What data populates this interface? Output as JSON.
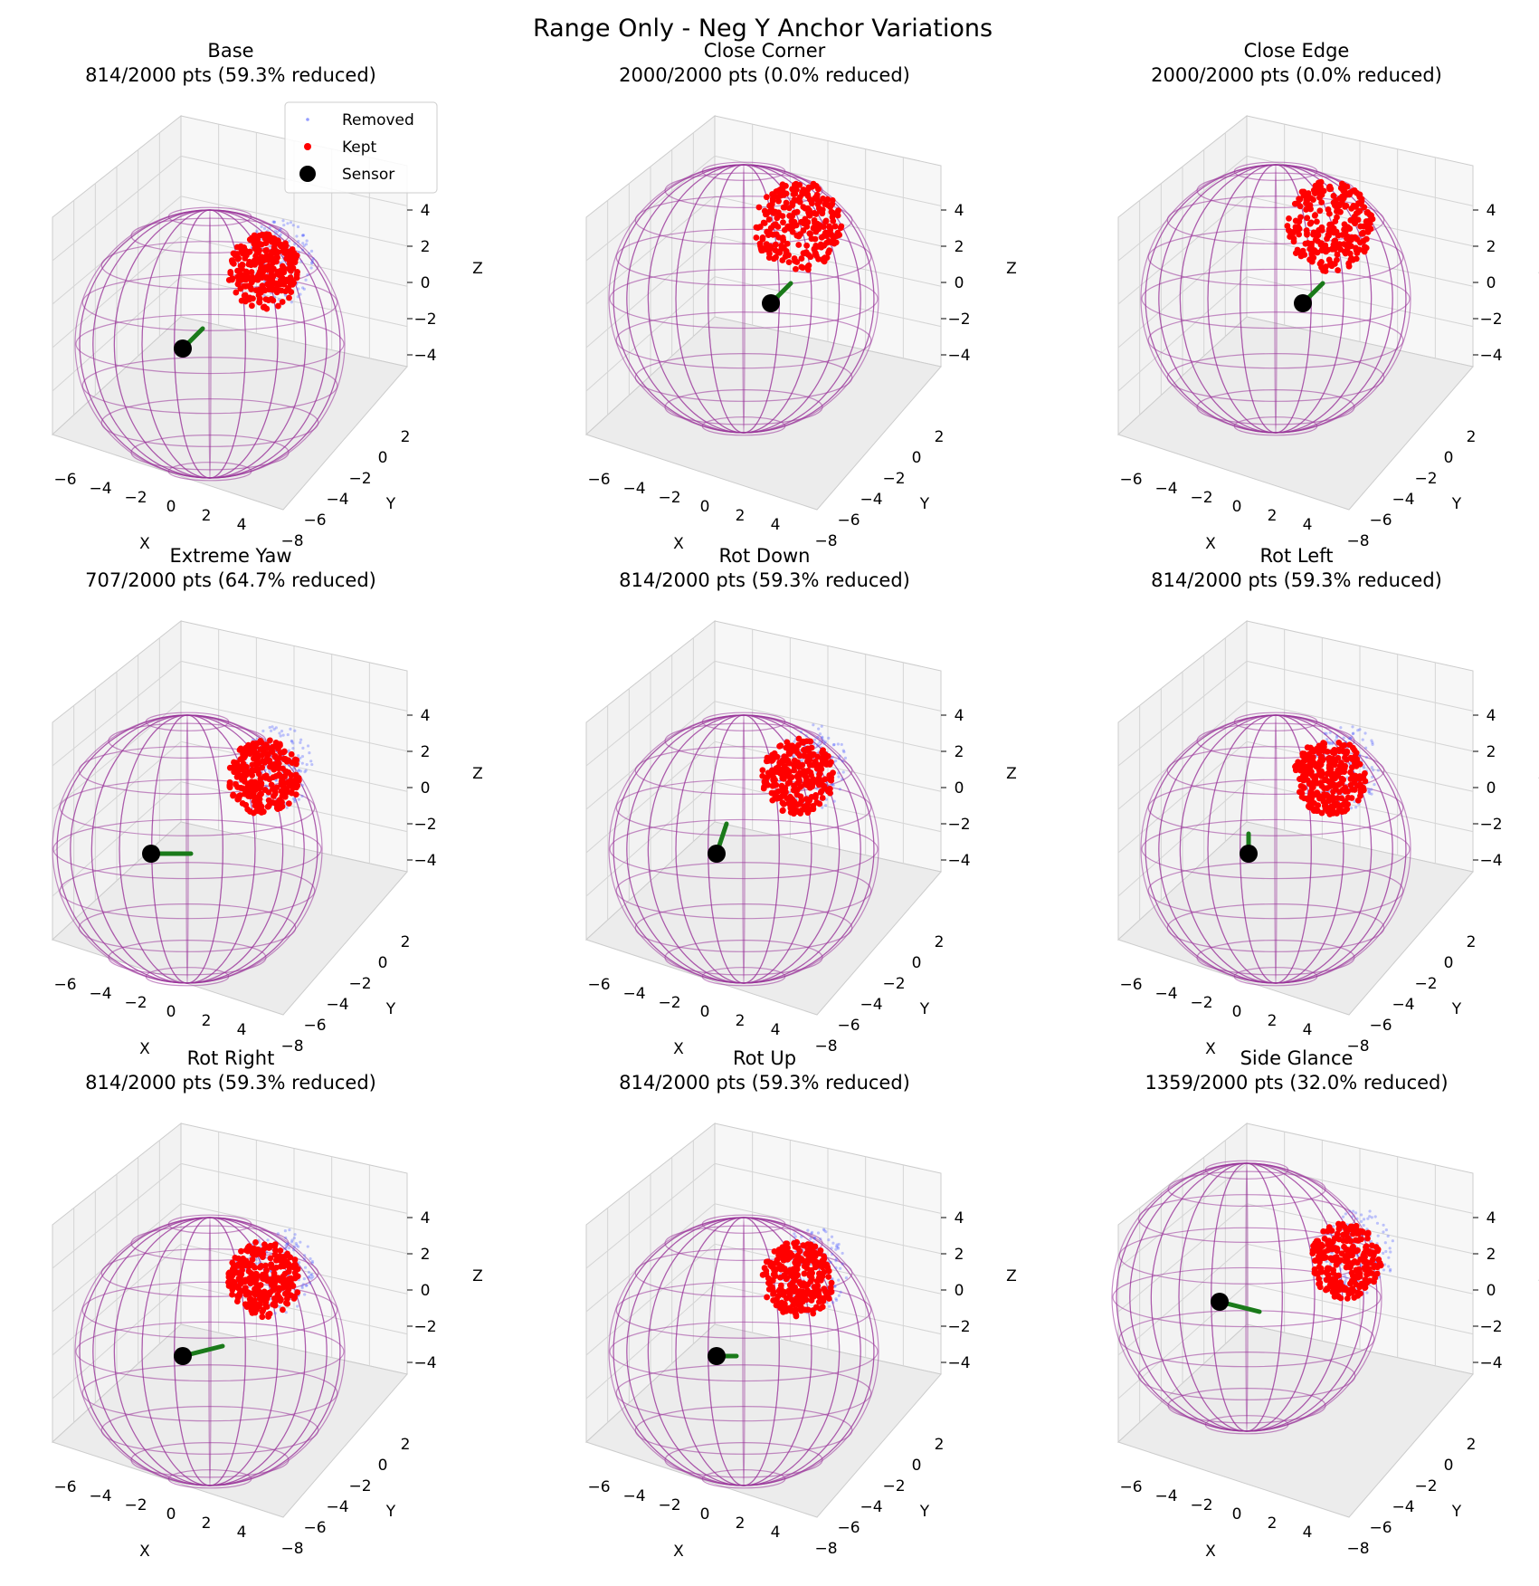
{
  "figure": {
    "suptitle": "Range Only - Neg Y Anchor Variations"
  },
  "colors": {
    "removed": "#4d5cff",
    "kept": "#ff0000",
    "sensor": "#000000",
    "arrow": "#1a7a1a",
    "sphere": "#993399"
  },
  "legend": {
    "location": "upper-right of first panel",
    "items": [
      {
        "label": "Removed",
        "marker": "small-blue-dot"
      },
      {
        "label": "Kept",
        "marker": "red-dot"
      },
      {
        "label": "Sensor",
        "marker": "large-black-dot"
      }
    ]
  },
  "chart_data": [
    {
      "type": "scatter",
      "subtype": "3d",
      "title": "Base",
      "subtitle": "814/2000 pts (59.3% reduced)",
      "kept": 814,
      "total": 2000,
      "reduced_pct": 59.3,
      "xlabel": "X",
      "ylabel": "Y",
      "zlabel": "Z",
      "xticks": [
        "−6",
        "−4",
        "−2",
        "0",
        "2",
        "4"
      ],
      "yticks": [
        "2",
        "0",
        "−2",
        "−4",
        "−6",
        "−8"
      ],
      "zticks": [
        "4",
        "2",
        "0",
        "−2",
        "−4"
      ],
      "xlim": [
        -7,
        5
      ],
      "ylim": [
        -9,
        3.5
      ],
      "zlim": [
        -5.5,
        5.5
      ],
      "sphere_radius": 5,
      "cluster": {
        "x": 3,
        "y": 0,
        "z": 1
      },
      "removed_fringe": true,
      "sensor": {
        "x": -1,
        "y": -4,
        "z": -3
      },
      "arrow": {
        "dx": 1,
        "dy": 0,
        "dz": 1
      }
    },
    {
      "type": "scatter",
      "subtype": "3d",
      "title": "Close Corner",
      "subtitle": "2000/2000 pts (0.0% reduced)",
      "kept": 2000,
      "total": 2000,
      "reduced_pct": 0.0,
      "xlabel": "X",
      "ylabel": "Y",
      "zlabel": "Z",
      "xticks": [
        "−6",
        "−4",
        "−2",
        "0",
        "2",
        "4"
      ],
      "yticks": [
        "2",
        "0",
        "−2",
        "−4",
        "−6",
        "−8"
      ],
      "zticks": [
        "4",
        "2",
        "0",
        "−2",
        "−4"
      ],
      "xlim": [
        -7,
        5
      ],
      "ylim": [
        -9,
        3.5
      ],
      "zlim": [
        -5.5,
        5.5
      ],
      "sphere_radius": 5,
      "cluster": {
        "x": 3,
        "y": -1,
        "z": 0
      },
      "removed_fringe": false,
      "sensor": {
        "x": 0,
        "y": -2,
        "z": 0
      },
      "arrow": {
        "dx": 1,
        "dy": 0,
        "dz": 1
      }
    },
    {
      "type": "scatter",
      "subtype": "3d",
      "title": "Close Edge",
      "subtitle": "2000/2000 pts (0.0% reduced)",
      "kept": 2000,
      "total": 2000,
      "reduced_pct": 0.0,
      "xlabel": "X",
      "ylabel": "Y",
      "zlabel": "Z",
      "xticks": [
        "−6",
        "−4",
        "−2",
        "0",
        "2",
        "4"
      ],
      "yticks": [
        "2",
        "0",
        "−2",
        "−4",
        "−6",
        "−8"
      ],
      "zticks": [
        "4",
        "2",
        "0",
        "−2",
        "−4"
      ],
      "xlim": [
        -7,
        5
      ],
      "ylim": [
        -9,
        3.5
      ],
      "zlim": [
        -5.5,
        5.5
      ],
      "sphere_radius": 5,
      "cluster": {
        "x": 3,
        "y": -1,
        "z": 0
      },
      "removed_fringe": false,
      "sensor": {
        "x": 0,
        "y": -2,
        "z": 0
      },
      "arrow": {
        "dx": 1,
        "dy": 0,
        "dz": 1
      }
    },
    {
      "type": "scatter",
      "subtype": "3d",
      "title": "Extreme Yaw",
      "subtitle": "707/2000 pts (64.7% reduced)",
      "kept": 707,
      "total": 2000,
      "reduced_pct": 64.7,
      "xlabel": "X",
      "ylabel": "Y",
      "zlabel": "Z",
      "xticks": [
        "−6",
        "−4",
        "−2",
        "0",
        "2",
        "4"
      ],
      "yticks": [
        "2",
        "0",
        "−2",
        "−4",
        "−6",
        "−8"
      ],
      "zticks": [
        "4",
        "2",
        "0",
        "−2",
        "−4"
      ],
      "xlim": [
        -7,
        5
      ],
      "ylim": [
        -9,
        3.5
      ],
      "zlim": [
        -5.5,
        5.5
      ],
      "sphere_radius": 5,
      "cluster": {
        "x": 3,
        "y": 0,
        "z": 0.5
      },
      "removed_fringe": true,
      "sensor": {
        "x": -1,
        "y": -3,
        "z": -2
      },
      "arrow": {
        "dx": 2,
        "dy": 0,
        "dz": 0
      }
    },
    {
      "type": "scatter",
      "subtype": "3d",
      "title": "Rot Down",
      "subtitle": "814/2000 pts (59.3% reduced)",
      "kept": 814,
      "total": 2000,
      "reduced_pct": 59.3,
      "xlabel": "X",
      "ylabel": "Y",
      "zlabel": "Z",
      "xticks": [
        "−6",
        "−4",
        "−2",
        "0",
        "2",
        "4"
      ],
      "yticks": [
        "2",
        "0",
        "−2",
        "−4",
        "−6",
        "−8"
      ],
      "zticks": [
        "4",
        "2",
        "0",
        "−2",
        "−4"
      ],
      "xlim": [
        -7,
        5
      ],
      "ylim": [
        -9,
        3.5
      ],
      "zlim": [
        -5.5,
        5.5
      ],
      "sphere_radius": 5,
      "cluster": {
        "x": 3,
        "y": 0,
        "z": 1
      },
      "removed_fringe": true,
      "sensor": {
        "x": -1,
        "y": -4,
        "z": -3
      },
      "arrow": {
        "dx": 0.5,
        "dy": 0,
        "dz": 1.5
      }
    },
    {
      "type": "scatter",
      "subtype": "3d",
      "title": "Rot Left",
      "subtitle": "814/2000 pts (59.3% reduced)",
      "kept": 814,
      "total": 2000,
      "reduced_pct": 59.3,
      "xlabel": "X",
      "ylabel": "Y",
      "zlabel": "Z",
      "xticks": [
        "−6",
        "−4",
        "−2",
        "0",
        "2",
        "4"
      ],
      "yticks": [
        "2",
        "0",
        "−2",
        "−4",
        "−6",
        "−8"
      ],
      "zticks": [
        "4",
        "2",
        "0",
        "−2",
        "−4"
      ],
      "xlim": [
        -7,
        5
      ],
      "ylim": [
        -9,
        3.5
      ],
      "zlim": [
        -5.5,
        5.5
      ],
      "sphere_radius": 5,
      "cluster": {
        "x": 3,
        "y": 0,
        "z": 1
      },
      "removed_fringe": true,
      "sensor": {
        "x": -1,
        "y": -4,
        "z": -3
      },
      "arrow": {
        "dx": 0,
        "dy": 0,
        "dz": 1
      }
    },
    {
      "type": "scatter",
      "subtype": "3d",
      "title": "Rot Right",
      "subtitle": "814/2000 pts (59.3% reduced)",
      "kept": 814,
      "total": 2000,
      "reduced_pct": 59.3,
      "xlabel": "X",
      "ylabel": "Y",
      "zlabel": "Z",
      "xticks": [
        "−6",
        "−4",
        "−2",
        "0",
        "2",
        "4"
      ],
      "yticks": [
        "2",
        "0",
        "−2",
        "−4",
        "−6",
        "−8"
      ],
      "zticks": [
        "4",
        "2",
        "0",
        "−2",
        "−4"
      ],
      "xlim": [
        -7,
        5
      ],
      "ylim": [
        -9,
        3.5
      ],
      "zlim": [
        -5.5,
        5.5
      ],
      "sphere_radius": 5,
      "cluster": {
        "x": 3,
        "y": 0,
        "z": 1
      },
      "removed_fringe": true,
      "sensor": {
        "x": -1,
        "y": -4,
        "z": -3
      },
      "arrow": {
        "dx": 2,
        "dy": 0,
        "dz": 0.5
      }
    },
    {
      "type": "scatter",
      "subtype": "3d",
      "title": "Rot Up",
      "subtitle": "814/2000 pts (59.3% reduced)",
      "kept": 814,
      "total": 2000,
      "reduced_pct": 59.3,
      "xlabel": "X",
      "ylabel": "Y",
      "zlabel": "Z",
      "xticks": [
        "−6",
        "−4",
        "−2",
        "0",
        "2",
        "4"
      ],
      "yticks": [
        "2",
        "0",
        "−2",
        "−4",
        "−6",
        "−8"
      ],
      "zticks": [
        "4",
        "2",
        "0",
        "−2",
        "−4"
      ],
      "xlim": [
        -7,
        5
      ],
      "ylim": [
        -9,
        3.5
      ],
      "zlim": [
        -5.5,
        5.5
      ],
      "sphere_radius": 5,
      "cluster": {
        "x": 3,
        "y": 0,
        "z": 1
      },
      "removed_fringe": true,
      "sensor": {
        "x": -1,
        "y": -4,
        "z": -3
      },
      "arrow": {
        "dx": 1,
        "dy": 0,
        "dz": 0
      }
    },
    {
      "type": "scatter",
      "subtype": "3d",
      "title": "Side Glance",
      "subtitle": "1359/2000 pts (32.0% reduced)",
      "kept": 1359,
      "total": 2000,
      "reduced_pct": 32.0,
      "xlabel": "X",
      "ylabel": "Y",
      "zlabel": "Z",
      "xticks": [
        "−6",
        "−4",
        "−2",
        "0",
        "2",
        "4"
      ],
      "yticks": [
        "2",
        "0",
        "−2",
        "−4",
        "−6",
        "−8"
      ],
      "zticks": [
        "4",
        "2",
        "0",
        "−2",
        "−4"
      ],
      "xlim": [
        -7,
        5
      ],
      "ylim": [
        -9,
        3.5
      ],
      "zlim": [
        -5.5,
        5.5
      ],
      "sphere_radius": 5,
      "cluster": {
        "x": 4,
        "y": 0,
        "z": 0
      },
      "removed_fringe": true,
      "sensor": {
        "x": -2,
        "y": -2,
        "z": -1
      },
      "arrow": {
        "dx": 2,
        "dy": 0,
        "dz": -0.5
      }
    }
  ]
}
